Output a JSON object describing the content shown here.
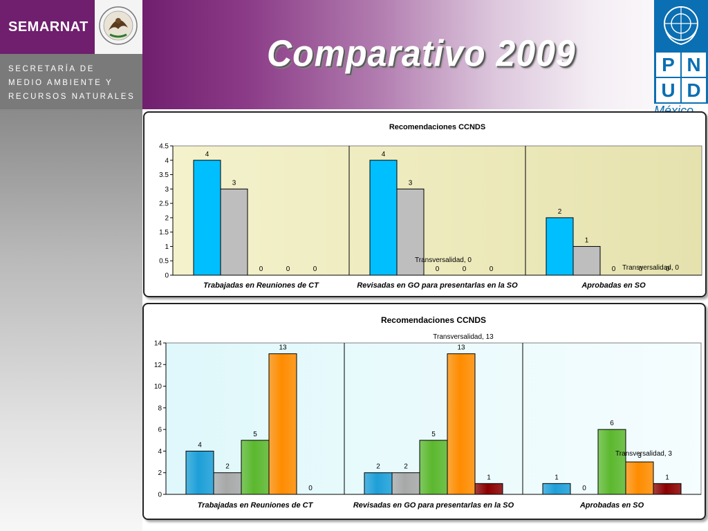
{
  "header": {
    "org_name": "SEMARNAT",
    "secretariat_lines": [
      "SECRETARÍA DE",
      "MEDIO AMBIENTE Y",
      "RECURSOS NATURALES"
    ],
    "seal_text": "ESTADOS UNIDOS MEXICANOS",
    "slide_title": "Comparativo  2009",
    "undp_letters": [
      "P",
      "N",
      "U",
      "D"
    ],
    "undp_country": "México"
  },
  "colors": {
    "purple": "#6f1f6e",
    "undp_blue": "#0b6fb3",
    "cyan": "#00bfff",
    "gray": "#bebebe",
    "green": "#5cb82e",
    "orange": "#ff8c00",
    "darkred": "#8b0000"
  },
  "chart_data": [
    {
      "type": "bar",
      "title": "Recomendaciones CCNDS",
      "categories": [
        "Trabajadas en Reuniones de CT",
        "Revisadas en GO para presentarlas en la SO",
        "Aprobadas en SO"
      ],
      "ylim": [
        0,
        4.5
      ],
      "yticks": [
        0,
        0.5,
        1,
        1.5,
        2,
        2.5,
        3,
        3.5,
        4,
        4.5
      ],
      "plot_background": "#f4f2cc",
      "series_colors": [
        "#00bfff",
        "#bebebe",
        "#8bc34a",
        "#ff8c00",
        "#8b0000"
      ],
      "series": [
        {
          "values": [
            4,
            4,
            2
          ]
        },
        {
          "values": [
            3,
            3,
            1
          ]
        },
        {
          "values": [
            0,
            0,
            0
          ]
        },
        {
          "values": [
            0,
            0,
            0
          ]
        },
        {
          "values": [
            0,
            0,
            0
          ]
        }
      ],
      "annotations": [
        "Transversalidad, 0",
        "Transversalidad, 0"
      ]
    },
    {
      "type": "bar",
      "title": "Recomendaciones CCNDS",
      "categories": [
        "Trabajadas en Reuniones de CT",
        "Revisadas en GO para presentarlas en la SO",
        "Aprobadas en SO"
      ],
      "ylim": [
        0,
        14
      ],
      "yticks": [
        0,
        2,
        4,
        6,
        8,
        10,
        12,
        14
      ],
      "plot_background": "#dff8fb",
      "series_colors": [
        "#1e9fd8",
        "#a8a8a8",
        "#5cb82e",
        "#ff8c00",
        "#8b0000"
      ],
      "series": [
        {
          "values": [
            4,
            2,
            1
          ]
        },
        {
          "values": [
            2,
            2,
            0
          ]
        },
        {
          "values": [
            5,
            5,
            6
          ]
        },
        {
          "values": [
            13,
            13,
            3
          ]
        },
        {
          "values": [
            0,
            1,
            1
          ]
        }
      ],
      "annotations": [
        "Transversalidad, 13",
        "Transversalidad, 3"
      ]
    }
  ]
}
